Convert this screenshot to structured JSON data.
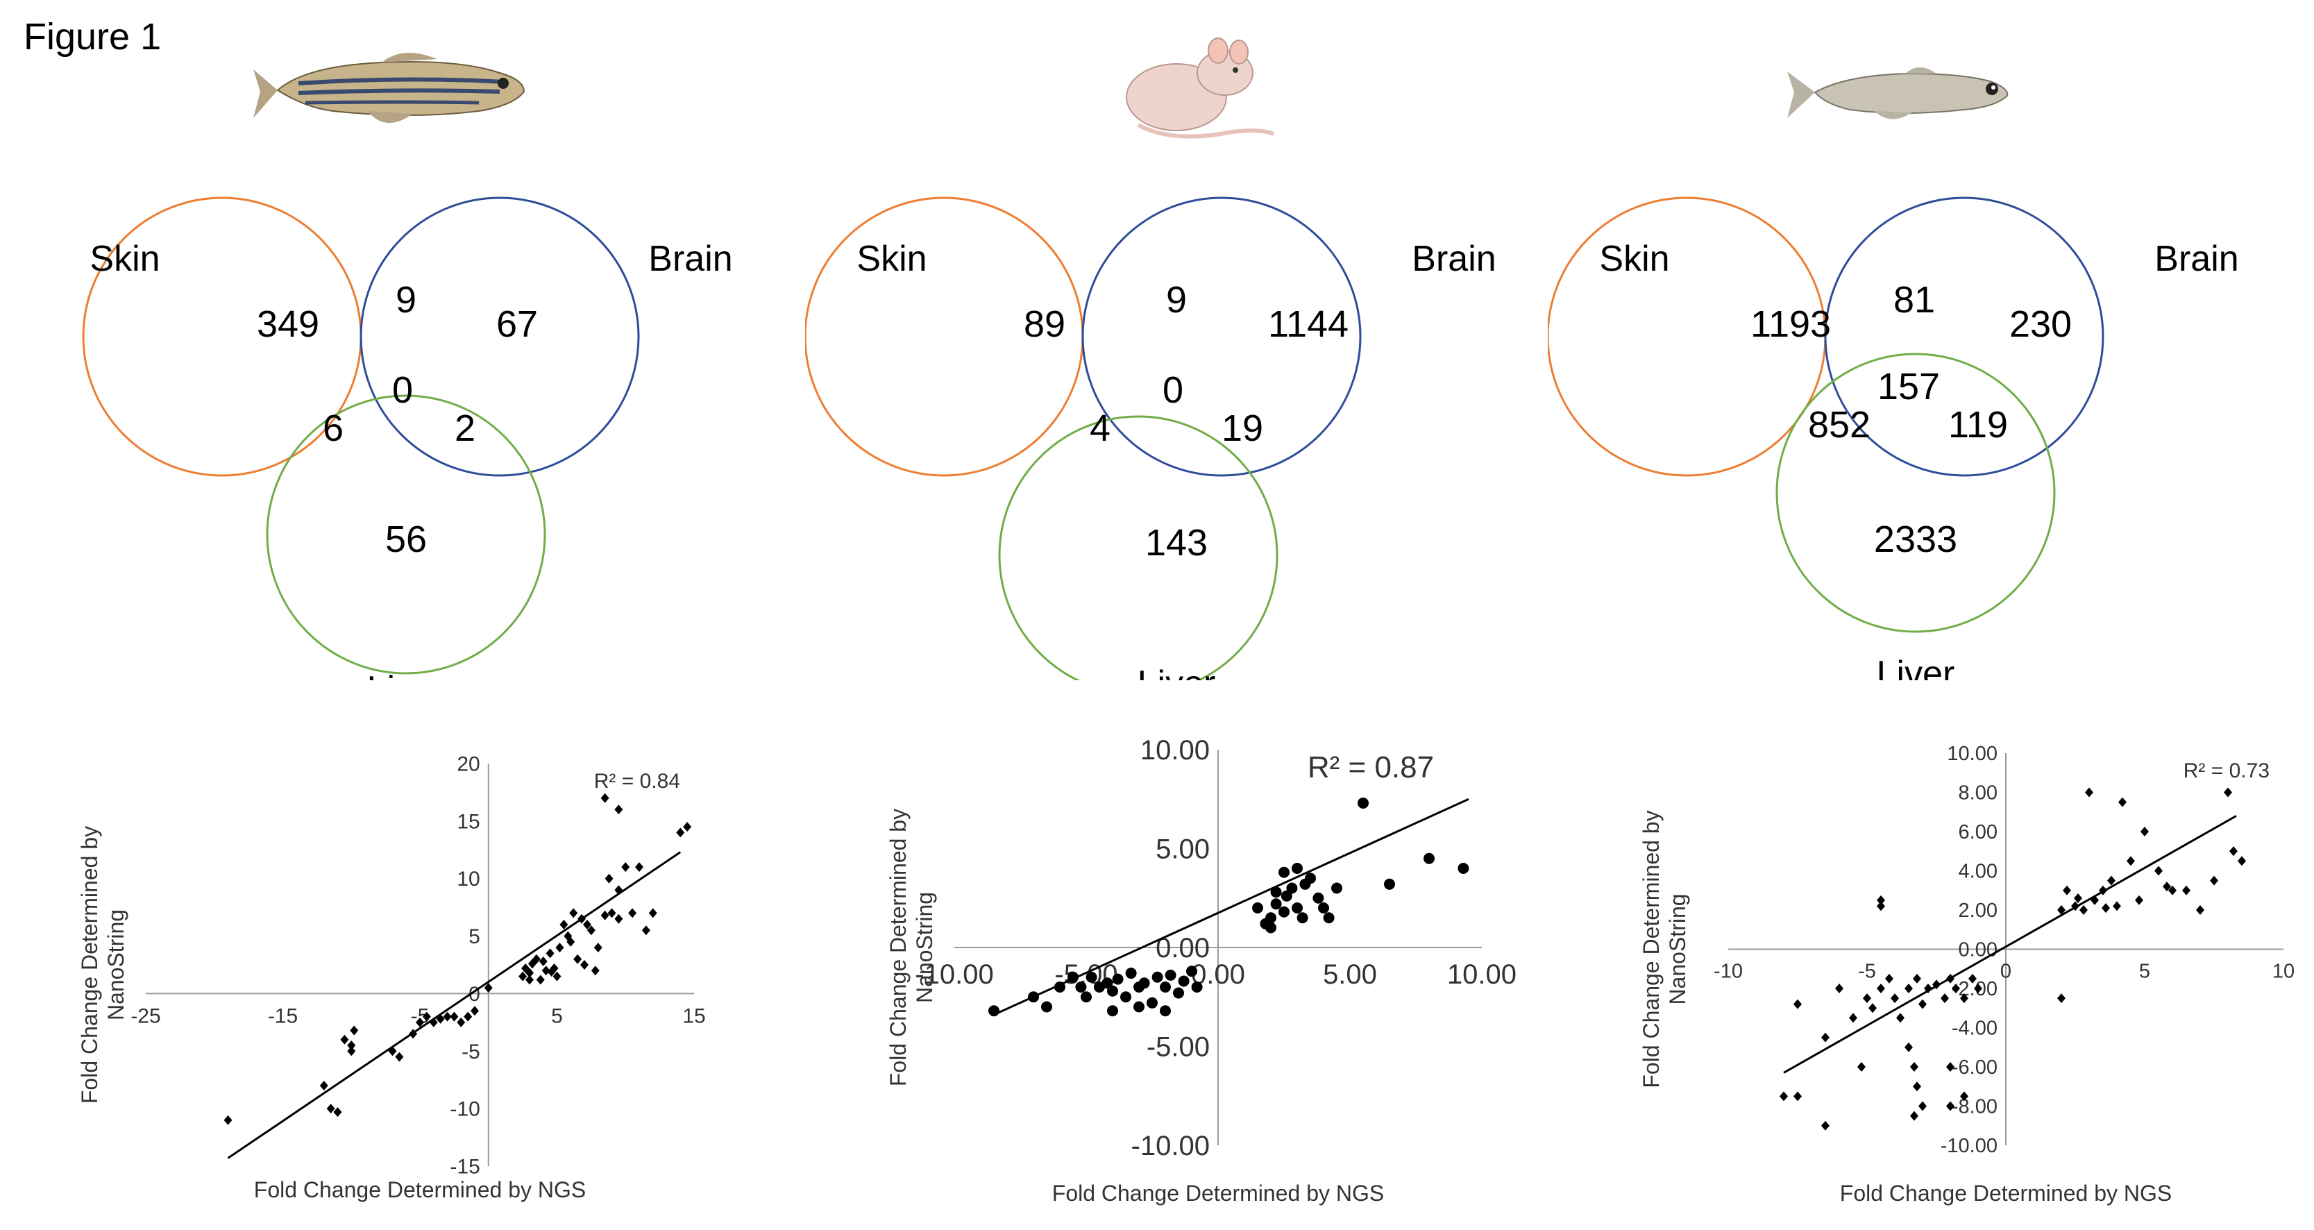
{
  "figure": {
    "title": "Figure 1"
  },
  "colors": {
    "skin": "#ED7D31",
    "brain": "#2E4C9A",
    "liver": "#70AD47",
    "ink": "#000000",
    "axis": "#9a9a9a"
  },
  "organisms": [
    {
      "name": "zebrafish",
      "icon": "fish-icon"
    },
    {
      "name": "mouse",
      "icon": "mouse-icon"
    },
    {
      "name": "medaka",
      "icon": "fish-icon"
    }
  ],
  "venn_labels": {
    "skin": "Skin",
    "brain": "Brain",
    "liver": "Liver"
  },
  "venns": [
    {
      "skin_only": "349",
      "skin_brain": "9",
      "brain_only": "67",
      "all_three": "0",
      "skin_liver": "6",
      "brain_liver": "2",
      "liver_only": "56"
    },
    {
      "skin_only": "89",
      "skin_brain": "9",
      "brain_only": "1144",
      "all_three": "0",
      "skin_liver": "4",
      "brain_liver": "19",
      "liver_only": "143"
    },
    {
      "skin_only": "1193",
      "skin_brain": "81",
      "brain_only": "230",
      "all_three": "157",
      "skin_liver": "852",
      "brain_liver": "119",
      "liver_only": "2333"
    }
  ],
  "chart_data": [
    {
      "type": "scatter",
      "title": "",
      "xlabel": "Fold Change Determined by NGS",
      "ylabel": "Fold Change Determined by NanoString",
      "xlim": [
        -25,
        15
      ],
      "ylim": [
        -15,
        20
      ],
      "xticks": [
        -25,
        -15,
        -5,
        5,
        15
      ],
      "xtick_labels": [
        "-25",
        "-15",
        "-5",
        "5",
        "15"
      ],
      "yticks": [
        -15,
        -10,
        -5,
        0,
        5,
        10,
        15,
        20
      ],
      "ytick_labels": [
        "-15",
        "-10",
        "-5",
        "0",
        "5",
        "10",
        "15",
        "20"
      ],
      "r2_label": "R² = 0.84",
      "trendline": {
        "x": [
          -19,
          14
        ],
        "y": [
          -14.3,
          12.3
        ]
      },
      "points": [
        [
          -19,
          -11
        ],
        [
          -11.5,
          -10
        ],
        [
          -11,
          -10.3
        ],
        [
          -12,
          -8
        ],
        [
          -10,
          -5
        ],
        [
          -10,
          -4.5
        ],
        [
          -10.5,
          -4
        ],
        [
          -9.8,
          -3.2
        ],
        [
          -7,
          -5
        ],
        [
          -6.5,
          -5.5
        ],
        [
          -5.5,
          -3.5
        ],
        [
          -5,
          -2.5
        ],
        [
          -4.5,
          -2
        ],
        [
          -4,
          -2.5
        ],
        [
          -3.5,
          -2.2
        ],
        [
          -3,
          -2
        ],
        [
          -2.5,
          -2
        ],
        [
          -2,
          -2.5
        ],
        [
          -1.5,
          -2
        ],
        [
          -1,
          -1.5
        ],
        [
          0,
          0.5
        ],
        [
          2.5,
          1.5
        ],
        [
          2.7,
          2.2
        ],
        [
          3,
          1.8
        ],
        [
          3.2,
          2.6
        ],
        [
          3.5,
          3
        ],
        [
          3.8,
          1.2
        ],
        [
          4,
          2.8
        ],
        [
          4.2,
          2
        ],
        [
          4.5,
          3.5
        ],
        [
          4.8,
          2.2
        ],
        [
          5,
          1.5
        ],
        [
          5.2,
          4
        ],
        [
          5.5,
          6
        ],
        [
          5.8,
          5
        ],
        [
          6,
          4.5
        ],
        [
          6.2,
          7
        ],
        [
          6.5,
          3
        ],
        [
          6.8,
          6.5
        ],
        [
          7,
          2.5
        ],
        [
          7.2,
          6
        ],
        [
          7.5,
          5.5
        ],
        [
          7.8,
          2
        ],
        [
          8,
          4
        ],
        [
          8.5,
          6.8
        ],
        [
          8.8,
          10
        ],
        [
          9,
          7
        ],
        [
          9.5,
          9
        ],
        [
          10,
          11
        ],
        [
          10.5,
          7
        ],
        [
          11,
          11
        ],
        [
          11.5,
          5.5
        ],
        [
          12,
          7
        ],
        [
          8.5,
          17
        ],
        [
          9.5,
          16
        ],
        [
          14,
          14
        ],
        [
          14.5,
          14.5
        ],
        [
          9.5,
          6.5
        ],
        [
          3,
          1.2
        ],
        [
          4.6,
          1.9
        ]
      ]
    },
    {
      "type": "scatter",
      "title": "",
      "xlabel": "Fold Change Determined by NGS",
      "ylabel": "Fold Change Determined by NanoString",
      "xlim": [
        -10,
        10
      ],
      "ylim": [
        -10,
        10
      ],
      "xticks": [
        -10,
        -5,
        0,
        5,
        10
      ],
      "xtick_labels": [
        "-10.00",
        "-5.00",
        "0.00",
        "5.00",
        "10.00"
      ],
      "yticks": [
        -10,
        -5,
        0,
        5,
        10
      ],
      "ytick_labels": [
        "-10.00",
        "-5.00",
        "0.00",
        "5.00",
        "10.00"
      ],
      "r2_label": "R² = 0.87",
      "trendline": {
        "x": [
          -8.5,
          9.5
        ],
        "y": [
          -3.4,
          7.5
        ]
      },
      "points": [
        [
          -8.5,
          -3.2
        ],
        [
          -7,
          -2.5
        ],
        [
          -6.5,
          -3
        ],
        [
          -6,
          -2
        ],
        [
          -5.5,
          -1.5
        ],
        [
          -5.2,
          -2
        ],
        [
          -5,
          -2.5
        ],
        [
          -4.8,
          -1.5
        ],
        [
          -4.5,
          -2
        ],
        [
          -4.2,
          -1.8
        ],
        [
          -4,
          -2.2
        ],
        [
          -3.8,
          -1.6
        ],
        [
          -3.5,
          -2.5
        ],
        [
          -3.3,
          -1.3
        ],
        [
          -3,
          -2
        ],
        [
          -2.8,
          -1.8
        ],
        [
          -2.5,
          -2.8
        ],
        [
          -2.3,
          -1.5
        ],
        [
          -2,
          -2
        ],
        [
          -1.8,
          -1.4
        ],
        [
          -1.5,
          -2.3
        ],
        [
          -1.3,
          -1.7
        ],
        [
          -1,
          -1.2
        ],
        [
          -0.8,
          -2
        ],
        [
          -3,
          -3
        ],
        [
          -4,
          -3.2
        ],
        [
          -2,
          -3.2
        ],
        [
          2,
          1.5
        ],
        [
          2.2,
          2.8
        ],
        [
          2.5,
          1.8
        ],
        [
          2.8,
          3
        ],
        [
          3,
          2
        ],
        [
          3.2,
          1.5
        ],
        [
          3.5,
          3.5
        ],
        [
          3.8,
          2.5
        ],
        [
          4,
          2
        ],
        [
          4.5,
          3
        ],
        [
          2.5,
          3.8
        ],
        [
          3,
          4
        ],
        [
          1.5,
          2
        ],
        [
          1.8,
          1.2
        ],
        [
          2.2,
          2.2
        ],
        [
          2.6,
          2.6
        ],
        [
          3.3,
          3.2
        ],
        [
          5.5,
          7.3
        ],
        [
          8,
          4.5
        ],
        [
          9.3,
          4
        ],
        [
          6.5,
          3.2
        ],
        [
          4.2,
          1.5
        ],
        [
          2,
          1
        ]
      ]
    },
    {
      "type": "scatter",
      "title": "",
      "xlabel": "Fold Change Determined by NGS",
      "ylabel": "Fold Change Determined by NanoString",
      "xlim": [
        -10,
        10
      ],
      "ylim": [
        -10,
        10
      ],
      "xticks": [
        -10,
        -5,
        0,
        5,
        10
      ],
      "xtick_labels": [
        "-10",
        "-5",
        "0",
        "5",
        "10"
      ],
      "yticks": [
        -10,
        -8,
        -6,
        -4,
        -2,
        0,
        2,
        4,
        6,
        8,
        10
      ],
      "ytick_labels": [
        "-10.00",
        "-8.00",
        "-6.00",
        "-4.00",
        "-2.00",
        "0.00",
        "2.00",
        "4.00",
        "6.00",
        "8.00",
        "10.00"
      ],
      "r2_label": "R² = 0.73",
      "trendline": {
        "x": [
          -8,
          8.3
        ],
        "y": [
          -6.3,
          6.8
        ]
      },
      "points": [
        [
          -8,
          -7.5
        ],
        [
          -7.5,
          -7.5
        ],
        [
          -6.5,
          -9
        ],
        [
          -7.5,
          -2.8
        ],
        [
          -6.5,
          -4.5
        ],
        [
          -6,
          -2
        ],
        [
          -5.5,
          -3.5
        ],
        [
          -5.2,
          -6
        ],
        [
          -5,
          -2.5
        ],
        [
          -4.8,
          -3
        ],
        [
          -4.5,
          -2
        ],
        [
          -4.2,
          -1.5
        ],
        [
          -4,
          -2.5
        ],
        [
          -3.8,
          -3.5
        ],
        [
          -3.5,
          -2
        ],
        [
          -3.2,
          -1.5
        ],
        [
          -3,
          -2.8
        ],
        [
          -2.8,
          -2
        ],
        [
          -2.5,
          -1.8
        ],
        [
          -2.2,
          -2.5
        ],
        [
          -2,
          -1.5
        ],
        [
          -1.8,
          -2
        ],
        [
          -1.5,
          -2.5
        ],
        [
          -3.5,
          -5
        ],
        [
          -3.3,
          -6
        ],
        [
          -3.2,
          -7
        ],
        [
          -3,
          -8
        ],
        [
          -3.3,
          -8.5
        ],
        [
          -2,
          -6
        ],
        [
          -2,
          -8
        ],
        [
          -1.5,
          -7.5
        ],
        [
          -4.5,
          2.5
        ],
        [
          -4.5,
          2.2
        ],
        [
          -1.2,
          -1.5
        ],
        [
          -1,
          -2
        ],
        [
          2,
          -2.5
        ],
        [
          2,
          2
        ],
        [
          2.2,
          3
        ],
        [
          2.5,
          2.2
        ],
        [
          2.8,
          2
        ],
        [
          3,
          8
        ],
        [
          3.2,
          2.5
        ],
        [
          3.5,
          3
        ],
        [
          3.8,
          3.5
        ],
        [
          4,
          2.2
        ],
        [
          4.2,
          7.5
        ],
        [
          4.5,
          4.5
        ],
        [
          4.8,
          2.5
        ],
        [
          5,
          6
        ],
        [
          5.5,
          4
        ],
        [
          6,
          3
        ],
        [
          6.5,
          3
        ],
        [
          7,
          2
        ],
        [
          7.5,
          3.5
        ],
        [
          8,
          8
        ],
        [
          8.2,
          5
        ],
        [
          8.5,
          4.5
        ],
        [
          5.8,
          3.2
        ],
        [
          3.6,
          2.1
        ],
        [
          2.6,
          2.6
        ]
      ]
    }
  ]
}
